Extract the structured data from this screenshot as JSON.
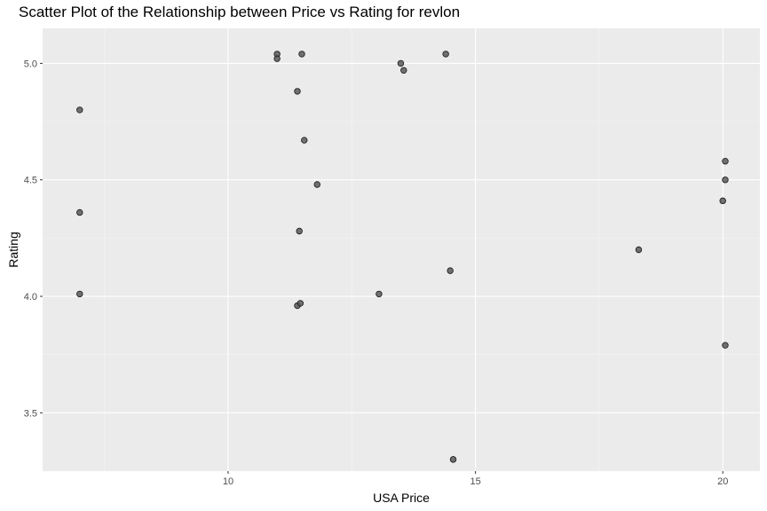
{
  "chart_data": {
    "type": "scatter",
    "title": "Scatter Plot of the Relationship between Price vs Rating for revlon",
    "xlabel": "USA Price",
    "ylabel": "Rating",
    "xlim": [
      6.25,
      20.75
    ],
    "ylim": [
      3.25,
      5.15
    ],
    "x_ticks": [
      10,
      15,
      20
    ],
    "x_tick_labels": [
      "10",
      "15",
      "20"
    ],
    "x_minor_ticks": [
      7.5,
      12.5,
      17.5
    ],
    "y_ticks": [
      3.5,
      4.0,
      4.5,
      5.0
    ],
    "y_tick_labels": [
      "3.5",
      "4.0",
      "4.5",
      "5.0"
    ],
    "y_minor_ticks": [
      3.25,
      3.75,
      4.25,
      4.75
    ],
    "grid": true,
    "point_color": "#595959",
    "panel_background": "#ebebeb",
    "points": [
      {
        "x": 7.0,
        "y": 4.8
      },
      {
        "x": 7.0,
        "y": 4.36
      },
      {
        "x": 7.0,
        "y": 4.01
      },
      {
        "x": 10.99,
        "y": 5.04
      },
      {
        "x": 10.99,
        "y": 5.02
      },
      {
        "x": 11.49,
        "y": 5.04
      },
      {
        "x": 11.4,
        "y": 4.88
      },
      {
        "x": 11.54,
        "y": 4.67
      },
      {
        "x": 11.8,
        "y": 4.48
      },
      {
        "x": 11.44,
        "y": 4.28
      },
      {
        "x": 11.4,
        "y": 3.96
      },
      {
        "x": 11.46,
        "y": 3.97
      },
      {
        "x": 13.49,
        "y": 5.0
      },
      {
        "x": 13.55,
        "y": 4.97
      },
      {
        "x": 14.4,
        "y": 5.04
      },
      {
        "x": 13.05,
        "y": 4.01
      },
      {
        "x": 14.49,
        "y": 4.11
      },
      {
        "x": 14.55,
        "y": 3.3
      },
      {
        "x": 18.3,
        "y": 4.2
      },
      {
        "x": 20.05,
        "y": 4.58
      },
      {
        "x": 20.05,
        "y": 4.5
      },
      {
        "x": 20.0,
        "y": 4.41
      },
      {
        "x": 20.05,
        "y": 3.79
      }
    ]
  }
}
